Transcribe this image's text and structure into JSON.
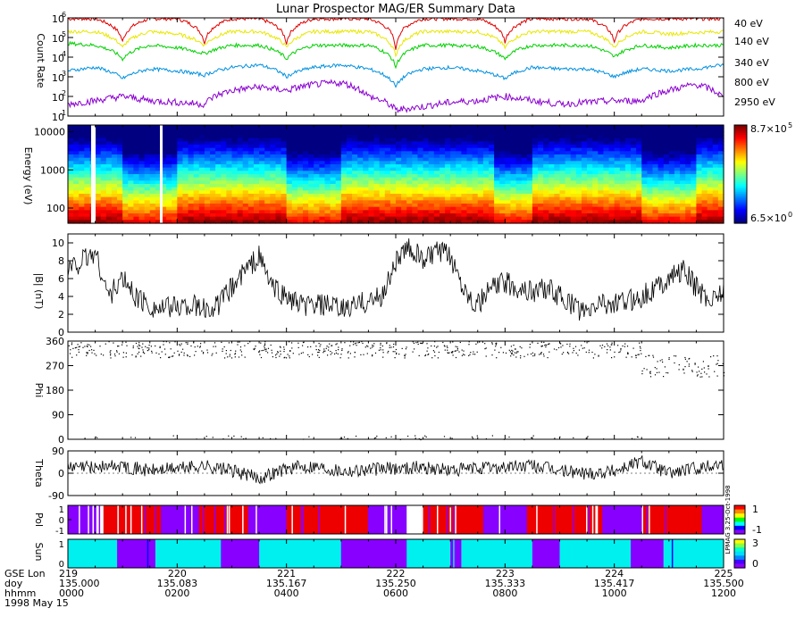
{
  "title": "Lunar Prospector MAG/ER Summary Data",
  "colors": {
    "40 eV": "#e00000",
    "140 eV": "#e8e800",
    "340 eV": "#00d000",
    "800 eV": "#0090e0",
    "2950 eV": "#8a00d0",
    "pol_pos": "#ee0000",
    "pol_neg": "#8800ff",
    "sun_lit": "#00f0f0",
    "sun_dark": "#8800ff"
  },
  "chart_data": [
    {
      "id": "count_rate",
      "type": "line",
      "ylabel": "Count Rate",
      "yscale": "log",
      "ylim": [
        10,
        1000000
      ],
      "yticks": [
        "10",
        "10",
        "10",
        "10",
        "10",
        "10"
      ],
      "ytick_exps": [
        "1",
        "2",
        "3",
        "4",
        "5",
        "6"
      ],
      "x": [
        0,
        0.5,
        1,
        1.5,
        2,
        2.5,
        3,
        3.5,
        4,
        4.5,
        5,
        5.5,
        6,
        6.5,
        7,
        7.5,
        8,
        8.5,
        9,
        9.5,
        10,
        10.5,
        11,
        11.5,
        12
      ],
      "series": [
        {
          "name": "40 eV",
          "values": [
            900000,
            900000,
            60000,
            900000,
            900000,
            50000,
            900000,
            900000,
            50000,
            900000,
            900000,
            900000,
            20000,
            900000,
            900000,
            900000,
            60000,
            900000,
            900000,
            900000,
            60000,
            900000,
            900000,
            900000,
            900000
          ]
        },
        {
          "name": "140 eV",
          "values": [
            200000,
            200000,
            30000,
            200000,
            150000,
            40000,
            200000,
            200000,
            30000,
            200000,
            200000,
            200000,
            10000,
            200000,
            200000,
            200000,
            30000,
            200000,
            200000,
            200000,
            30000,
            200000,
            150000,
            180000,
            200000
          ]
        },
        {
          "name": "340 eV",
          "values": [
            50000,
            40000,
            8000,
            40000,
            30000,
            15000,
            40000,
            40000,
            8000,
            40000,
            40000,
            40000,
            3000,
            40000,
            40000,
            35000,
            8000,
            40000,
            40000,
            40000,
            10000,
            40000,
            30000,
            40000,
            40000
          ]
        },
        {
          "name": "800 eV",
          "values": [
            2000,
            3000,
            800,
            2500,
            2000,
            1200,
            3000,
            4000,
            1000,
            3000,
            4000,
            2500,
            300,
            2500,
            3000,
            2000,
            800,
            3000,
            2500,
            2500,
            1000,
            2500,
            2000,
            2500,
            4000
          ]
        },
        {
          "name": "2950 eV",
          "values": [
            40,
            60,
            100,
            60,
            50,
            40,
            200,
            300,
            200,
            400,
            500,
            100,
            20,
            30,
            50,
            60,
            100,
            60,
            40,
            50,
            60,
            60,
            200,
            400,
            80
          ]
        }
      ]
    },
    {
      "id": "spectrogram",
      "type": "heatmap",
      "ylabel": "Energy (eV)",
      "yscale": "log",
      "ylim": [
        40,
        15000
      ],
      "yticks": [
        "10000",
        "1000",
        "100"
      ],
      "colorbar_max": "8.7×10",
      "colorbar_max_exp": "5",
      "colorbar_min": "6.5×10",
      "colorbar_min_exp": "0"
    },
    {
      "id": "btotal",
      "type": "line",
      "ylabel": "|B| (nT)",
      "ylim": [
        0,
        11
      ],
      "yticks": [
        "0",
        "2",
        "4",
        "6",
        "8",
        "10"
      ],
      "x": [
        0,
        0.25,
        0.5,
        0.75,
        1,
        1.25,
        1.5,
        1.75,
        2,
        2.25,
        2.5,
        2.75,
        3,
        3.25,
        3.5,
        3.75,
        4,
        4.25,
        4.5,
        4.75,
        5,
        5.25,
        5.5,
        5.75,
        6,
        6.25,
        6.5,
        6.75,
        7,
        7.25,
        7.5,
        7.75,
        8,
        8.25,
        8.5,
        8.75,
        9,
        9.25,
        9.5,
        9.75,
        10,
        10.25,
        10.5,
        10.75,
        11,
        11.25,
        11.5,
        11.75,
        12
      ],
      "values": [
        7,
        8,
        9,
        4,
        6,
        4,
        3,
        2.5,
        3,
        3,
        2.5,
        3,
        5,
        7,
        8.5,
        5,
        4,
        3,
        3,
        3,
        2.5,
        3,
        3.5,
        4,
        8,
        9.5,
        8,
        9,
        8.5,
        5,
        3,
        5,
        5.5,
        5,
        4.5,
        5,
        4,
        3,
        2,
        3.5,
        3,
        3.5,
        4,
        5,
        6,
        7,
        5,
        3.5,
        5
      ]
    },
    {
      "id": "phi",
      "type": "scatter",
      "ylabel": "Phi",
      "ylim": [
        0,
        360
      ],
      "yticks": [
        "0",
        "90",
        "180",
        "270",
        "360"
      ]
    },
    {
      "id": "theta",
      "type": "line",
      "ylabel": "Theta",
      "ylim": [
        -90,
        90
      ],
      "yticks": [
        "-90",
        "0",
        "90"
      ],
      "x": [
        0,
        0.5,
        1,
        1.5,
        2,
        2.5,
        3,
        3.5,
        4,
        4.5,
        5,
        5.5,
        6,
        6.5,
        7,
        7.5,
        8,
        8.5,
        9,
        9.5,
        10,
        10.5,
        11,
        11.5,
        12
      ],
      "values": [
        20,
        25,
        30,
        10,
        20,
        30,
        10,
        -20,
        20,
        30,
        10,
        15,
        20,
        25,
        10,
        20,
        25,
        30,
        10,
        0,
        10,
        50,
        0,
        20,
        40
      ]
    },
    {
      "id": "pol",
      "type": "heatmap",
      "ylabel": "Pol",
      "colorbar_ticks": [
        "1",
        "-1"
      ],
      "side_text": "LPMAG 3.25-Oct-1998"
    },
    {
      "id": "sun",
      "type": "heatmap",
      "ylabel": "Sun",
      "colorbar_ticks": [
        "3",
        "0"
      ]
    }
  ],
  "x_axis": {
    "row_labels": [
      "GSE Lon",
      "doy",
      "hhmm",
      "1998 May 15"
    ],
    "ticks": [
      {
        "gse": "219",
        "doy": "135.000",
        "hhmm": "0000"
      },
      {
        "gse": "220",
        "doy": "135.083",
        "hhmm": "0200"
      },
      {
        "gse": "221",
        "doy": "135.167",
        "hhmm": "0400"
      },
      {
        "gse": "222",
        "doy": "135.250",
        "hhmm": "0600"
      },
      {
        "gse": "223",
        "doy": "135.333",
        "hhmm": "0800"
      },
      {
        "gse": "224",
        "doy": "135.417",
        "hhmm": "1000"
      },
      {
        "gse": "225",
        "doy": "135.500",
        "hhmm": "1200"
      }
    ]
  }
}
